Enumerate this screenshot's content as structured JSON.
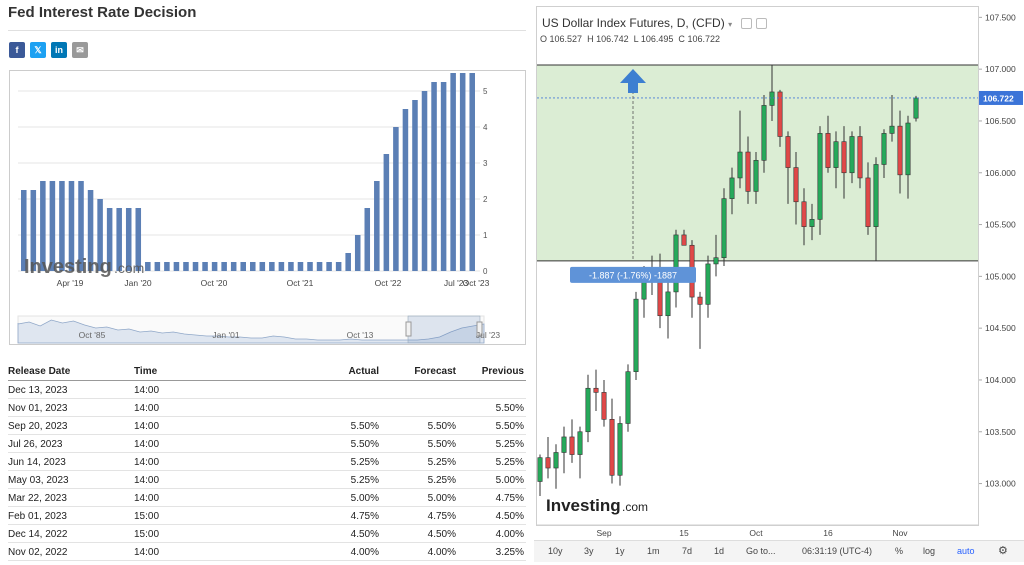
{
  "left": {
    "title": "Fed Interest Rate Decision",
    "share": [
      {
        "icon": "facebook-icon",
        "glyph": "f",
        "color": "#3b5998"
      },
      {
        "icon": "twitter-icon",
        "glyph": "𝕏",
        "color": "#1da1f2"
      },
      {
        "icon": "linkedin-icon",
        "glyph": "in",
        "color": "#0077b5"
      },
      {
        "icon": "email-icon",
        "glyph": "✉",
        "color": "#999999"
      }
    ],
    "watermark_a": "Investing",
    "watermark_b": ".com"
  },
  "chart_data": [
    {
      "type": "bar",
      "title": "",
      "x_tick_labels": [
        "Apr '19",
        "Jan '20",
        "Oct '20",
        "Oct '21",
        "Oct '22",
        "Jul '23",
        "Oct '23"
      ],
      "y_ticks": [
        0,
        1,
        2,
        3,
        4,
        5
      ],
      "ylim": [
        0,
        5.5
      ],
      "bar_color": "#5b7fb5",
      "values": [
        2.25,
        2.25,
        2.5,
        2.5,
        2.5,
        2.5,
        2.5,
        2.25,
        2.0,
        1.75,
        1.75,
        1.75,
        1.75,
        0.25,
        0.25,
        0.25,
        0.25,
        0.25,
        0.25,
        0.25,
        0.25,
        0.25,
        0.25,
        0.25,
        0.25,
        0.25,
        0.25,
        0.25,
        0.25,
        0.25,
        0.25,
        0.25,
        0.25,
        0.25,
        0.5,
        1.0,
        1.75,
        2.5,
        3.25,
        4.0,
        4.5,
        4.75,
        5.0,
        5.25,
        5.25,
        5.5,
        5.5,
        5.5
      ],
      "navigator_labels": [
        "Oct '85",
        "Jan '01",
        "Oct '13",
        "Jul '23"
      ]
    },
    {
      "type": "candlestick",
      "title": "US Dollar Index Futures, D, (CFD)",
      "open": 106.527,
      "high": 106.742,
      "low": 106.495,
      "close": 106.722,
      "last_price": "106.722",
      "ylim": [
        102.6,
        107.2
      ],
      "y_tick_labels": [
        "103.000",
        "103.500",
        "104.000",
        "104.500",
        "105.000",
        "105.500",
        "106.000",
        "106.500",
        "107.000",
        "107.500"
      ],
      "y_ticks": [
        103.0,
        103.5,
        104.0,
        104.5,
        105.0,
        105.5,
        106.0,
        106.5,
        107.0,
        107.5
      ],
      "x_tick_labels": [
        "Sep",
        "15",
        "Oct",
        "16",
        "Nov"
      ],
      "x_tick_index": [
        8,
        18,
        27,
        36,
        45
      ],
      "up_color": "#26a95b",
      "down_color": "#e04848",
      "range_box": {
        "top": 107.04,
        "bottom": 105.15,
        "color": "#d9ecd2"
      },
      "range_label": "-1.887 (-1.76%) -1887",
      "candles": [
        [
          103.02,
          103.28,
          102.88,
          103.25
        ],
        [
          103.25,
          103.45,
          103.05,
          103.15
        ],
        [
          103.15,
          103.38,
          102.95,
          103.3
        ],
        [
          103.3,
          103.55,
          103.1,
          103.45
        ],
        [
          103.45,
          103.62,
          103.2,
          103.28
        ],
        [
          103.28,
          103.55,
          103.05,
          103.5
        ],
        [
          103.5,
          104.05,
          103.4,
          103.92
        ],
        [
          103.92,
          104.1,
          103.7,
          103.88
        ],
        [
          103.88,
          104.0,
          103.55,
          103.62
        ],
        [
          103.62,
          103.82,
          103.0,
          103.08
        ],
        [
          103.08,
          103.65,
          102.98,
          103.58
        ],
        [
          103.58,
          104.15,
          103.5,
          104.08
        ],
        [
          104.08,
          104.85,
          104.0,
          104.78
        ],
        [
          104.78,
          105.1,
          104.6,
          104.95
        ],
        [
          104.95,
          105.2,
          104.82,
          105.08
        ],
        [
          105.08,
          105.22,
          104.5,
          104.62
        ],
        [
          104.62,
          104.95,
          104.4,
          104.85
        ],
        [
          104.85,
          105.45,
          104.7,
          105.4
        ],
        [
          105.4,
          105.45,
          105.3,
          105.3
        ],
        [
          105.3,
          105.35,
          104.6,
          104.8
        ],
        [
          104.8,
          104.85,
          104.3,
          104.73
        ],
        [
          104.73,
          105.2,
          104.6,
          105.12
        ],
        [
          105.12,
          105.4,
          105.0,
          105.18
        ],
        [
          105.18,
          105.85,
          105.1,
          105.75
        ],
        [
          105.75,
          106.05,
          105.6,
          105.95
        ],
        [
          105.95,
          106.6,
          105.85,
          106.2
        ],
        [
          106.2,
          106.35,
          105.7,
          105.82
        ],
        [
          105.82,
          106.2,
          105.7,
          106.12
        ],
        [
          106.12,
          106.75,
          106.0,
          106.65
        ],
        [
          106.65,
          107.04,
          106.5,
          106.78
        ],
        [
          106.78,
          106.8,
          106.25,
          106.35
        ],
        [
          106.35,
          106.4,
          105.7,
          106.05
        ],
        [
          106.05,
          106.2,
          105.5,
          105.72
        ],
        [
          105.72,
          105.85,
          105.3,
          105.48
        ],
        [
          105.48,
          105.7,
          105.35,
          105.55
        ],
        [
          105.55,
          106.45,
          105.4,
          106.38
        ],
        [
          106.38,
          106.55,
          106.0,
          106.05
        ],
        [
          106.05,
          106.4,
          105.85,
          106.3
        ],
        [
          106.3,
          106.45,
          105.75,
          106.0
        ],
        [
          106.0,
          106.4,
          105.9,
          106.35
        ],
        [
          106.35,
          106.45,
          105.85,
          105.95
        ],
        [
          105.95,
          106.1,
          105.4,
          105.48
        ],
        [
          105.48,
          106.15,
          105.15,
          106.08
        ],
        [
          106.08,
          106.42,
          105.95,
          106.38
        ],
        [
          106.38,
          106.75,
          106.3,
          106.45
        ],
        [
          106.45,
          106.6,
          105.8,
          105.98
        ],
        [
          105.98,
          106.55,
          105.75,
          106.48
        ],
        [
          106.527,
          106.742,
          106.495,
          106.722
        ]
      ]
    }
  ],
  "table": {
    "headers": {
      "date": "Release Date",
      "time": "Time",
      "actual": "Actual",
      "forecast": "Forecast",
      "previous": "Previous"
    },
    "rows": [
      {
        "date": "Dec 13, 2023",
        "time": "14:00",
        "actual": "",
        "forecast": "",
        "previous": ""
      },
      {
        "date": "Nov 01, 2023",
        "time": "14:00",
        "actual": "",
        "forecast": "",
        "previous": "5.50%"
      },
      {
        "date": "Sep 20, 2023",
        "time": "14:00",
        "actual": "5.50%",
        "forecast": "5.50%",
        "previous": "5.50%"
      },
      {
        "date": "Jul 26, 2023",
        "time": "14:00",
        "actual": "5.50%",
        "forecast": "5.50%",
        "previous": "5.25%"
      },
      {
        "date": "Jun 14, 2023",
        "time": "14:00",
        "actual": "5.25%",
        "forecast": "5.25%",
        "previous": "5.25%"
      },
      {
        "date": "May 03, 2023",
        "time": "14:00",
        "actual": "5.25%",
        "forecast": "5.25%",
        "previous": "5.00%"
      },
      {
        "date": "Mar 22, 2023",
        "time": "14:00",
        "actual": "5.00%",
        "forecast": "5.00%",
        "previous": "4.75%"
      },
      {
        "date": "Feb 01, 2023",
        "time": "15:00",
        "actual": "4.75%",
        "forecast": "4.75%",
        "previous": "4.50%"
      },
      {
        "date": "Dec 14, 2022",
        "time": "15:00",
        "actual": "4.50%",
        "forecast": "4.50%",
        "previous": "4.00%"
      },
      {
        "date": "Nov 02, 2022",
        "time": "14:00",
        "actual": "4.00%",
        "forecast": "4.00%",
        "previous": "3.25%"
      }
    ]
  },
  "right": {
    "symbol_title": "US Dollar Index Futures, D, (CFD)",
    "ohlc": {
      "o_label": "O",
      "o": "106.527",
      "h_label": "H",
      "h": "106.742",
      "l_label": "L",
      "l": "106.495",
      "c_label": "C",
      "c": "106.722"
    },
    "watermark_a": "Investing",
    "watermark_b": ".com",
    "bottom_bar": {
      "ranges": [
        "10y",
        "3y",
        "1y",
        "1m",
        "7d",
        "1d"
      ],
      "goto": "Go to...",
      "clock": "06:31:19 (UTC-4)",
      "pct": "%",
      "log": "log",
      "auto": "auto"
    }
  }
}
